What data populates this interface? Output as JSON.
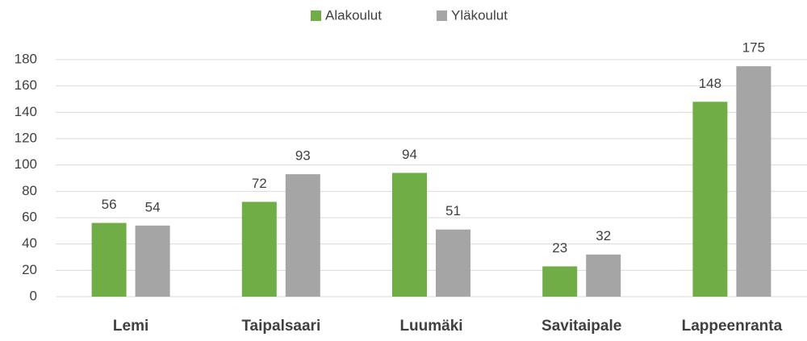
{
  "chart_data": {
    "type": "bar",
    "categories": [
      "Lemi",
      "Taipalsaari",
      "Luumäki",
      "Savitaipale",
      "Lappeenranta"
    ],
    "series": [
      {
        "name": "Alakoulut",
        "color": "#70ad47",
        "values": [
          56,
          72,
          94,
          23,
          148
        ]
      },
      {
        "name": "Yläkoulut",
        "color": "#a5a5a5",
        "values": [
          54,
          93,
          51,
          32,
          175
        ]
      }
    ],
    "ylim": [
      0,
      180
    ],
    "yticks": [
      0,
      20,
      40,
      60,
      80,
      100,
      120,
      140,
      160,
      180
    ],
    "grid": true,
    "legend": "top"
  }
}
